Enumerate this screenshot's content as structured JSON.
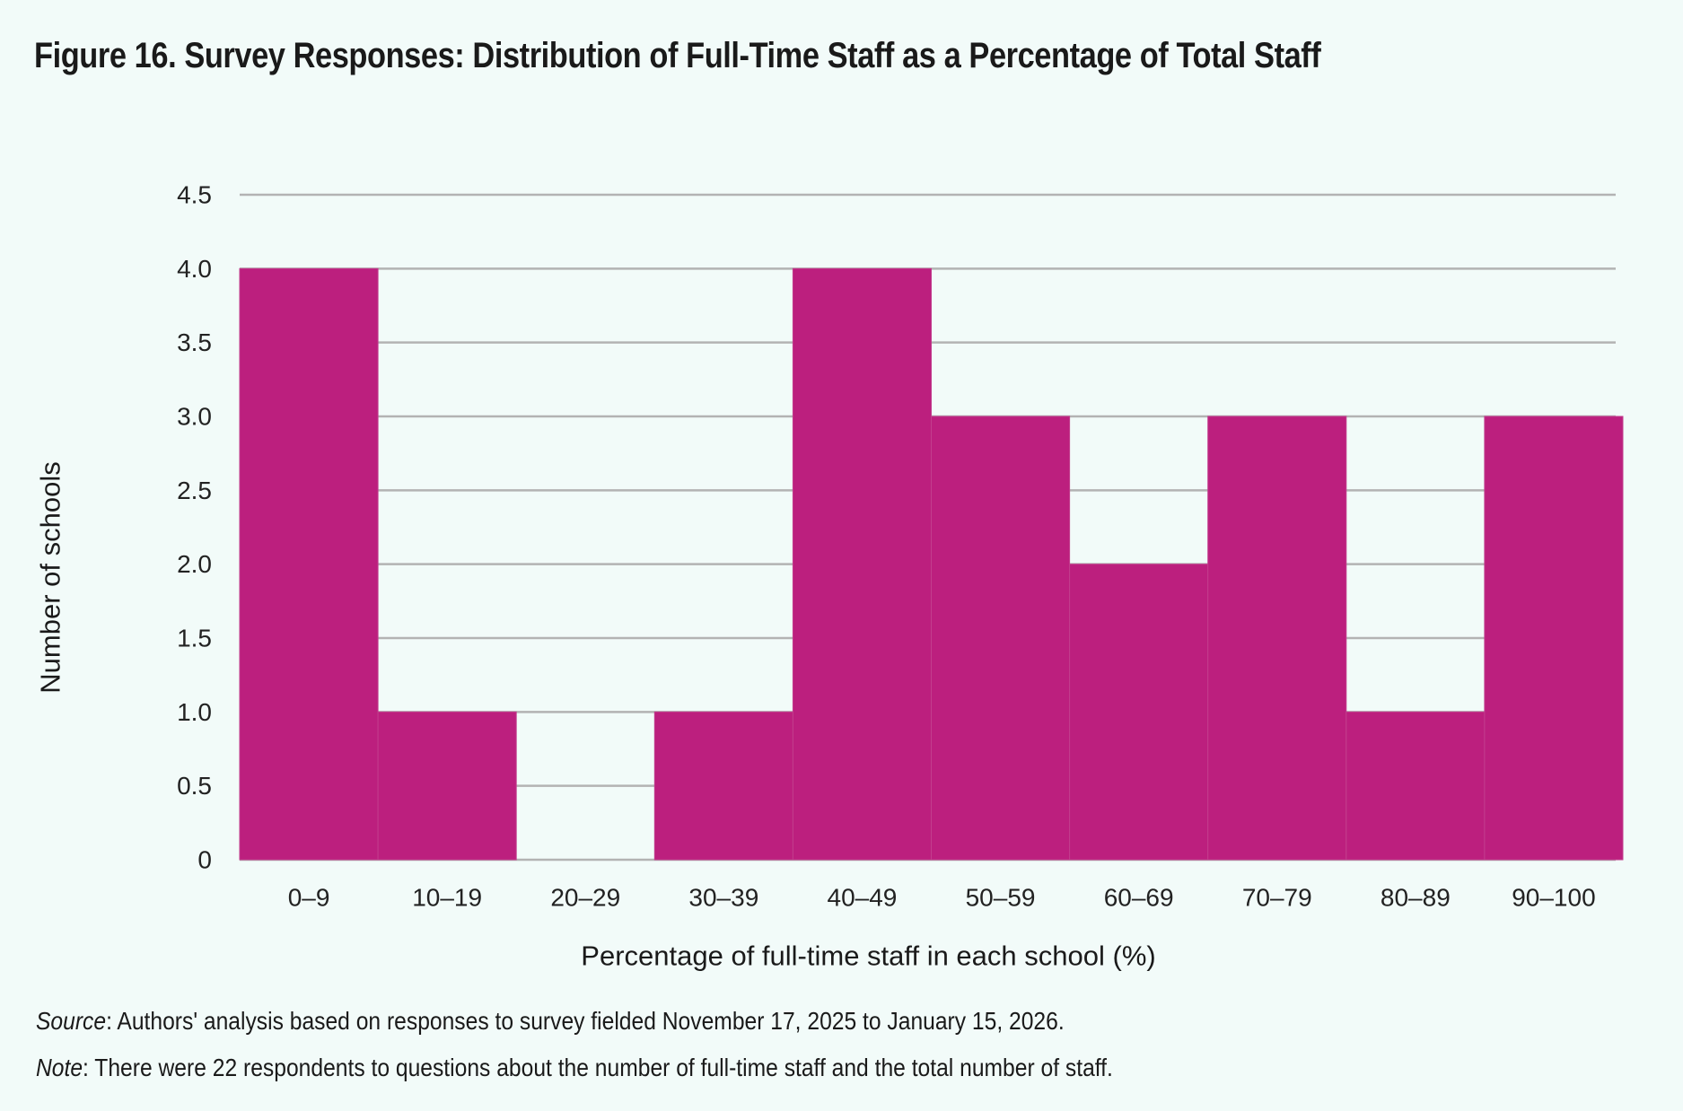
{
  "title": "Figure 16. Survey Responses: Distribution of Full-Time Staff as a Percentage of Total Staff",
  "chart_data": {
    "type": "bar",
    "title": "Figure 16. Survey Responses: Distribution of Full-Time Staff as a Percentage of Total Staff",
    "xlabel": "Percentage of full-time staff in each school (%)",
    "ylabel": "Number of schools",
    "categories": [
      "0–9",
      "10–19",
      "20–29",
      "30–39",
      "40–49",
      "50–59",
      "60–69",
      "70–79",
      "80–89",
      "90–100"
    ],
    "values": [
      4,
      1,
      0,
      1,
      4,
      3,
      2,
      3,
      1,
      3
    ],
    "ylim": [
      0,
      4.5
    ],
    "yticks": [
      "0",
      "0.5",
      "1.0",
      "1.5",
      "2.0",
      "2.5",
      "3.0",
      "3.5",
      "4.0",
      "4.5"
    ],
    "grid": true,
    "legend": "none",
    "bar_color": "#bc1f7e",
    "grid_color": "#b3b3b3"
  },
  "footnotes": {
    "source_label": "Source",
    "source_text": ": Authors' analysis based on responses to survey fielded November 17, 2025 to January 15, 2026.",
    "note_label": "Note",
    "note_text": ": There were 22 respondents to questions about the number of full-time staff and the total number of staff."
  }
}
